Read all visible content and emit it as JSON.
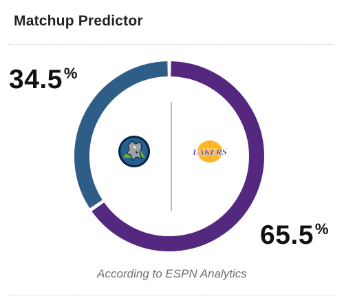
{
  "card": {
    "title": "Matchup Predictor",
    "source": "According to ESPN Analytics"
  },
  "teams": {
    "away": {
      "icon": "timberwolves-logo-icon",
      "color": "#2e5e87"
    },
    "home": {
      "icon": "lakers-logo-icon",
      "color": "#55287f",
      "logo_text": "LAKERS"
    }
  },
  "chart_data": {
    "type": "pie",
    "style": "donut",
    "title": "",
    "categories": [
      "Timberwolves",
      "Lakers"
    ],
    "values": [
      34.5,
      65.5
    ],
    "labels": [
      {
        "value": "34.5",
        "unit": "%"
      },
      {
        "value": "65.5",
        "unit": "%"
      }
    ],
    "colors": [
      "#2e5e87",
      "#55287f"
    ],
    "legend": "none"
  }
}
